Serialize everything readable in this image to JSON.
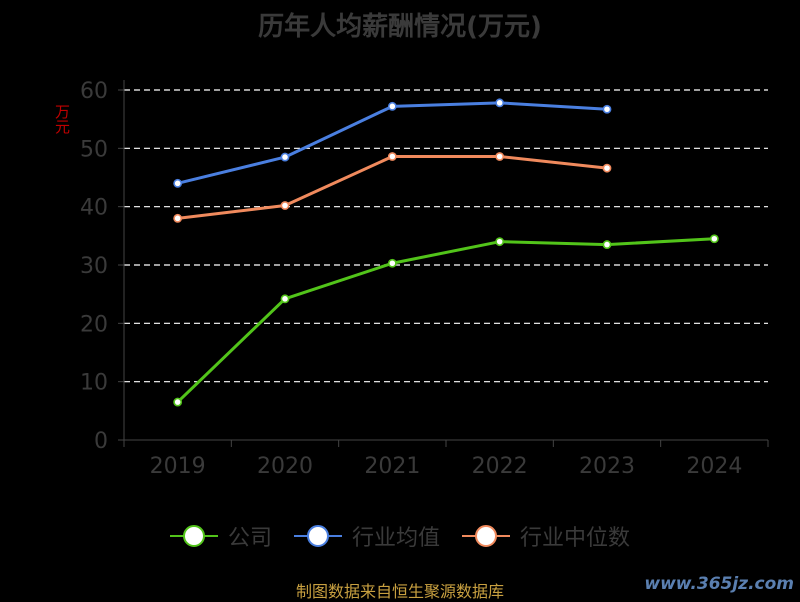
{
  "chart_data": {
    "type": "line",
    "title": "历年人均薪酬情况(万元)",
    "ylabel": "万元",
    "xlabel": "",
    "categories": [
      "2019",
      "2020",
      "2021",
      "2022",
      "2023",
      "2024"
    ],
    "ylim": [
      0,
      60
    ],
    "yticks": [
      0,
      10,
      20,
      30,
      40,
      50,
      60
    ],
    "grid": true,
    "legend_position": "bottom",
    "series": [
      {
        "name": "公司",
        "color": "#52c41a",
        "values": [
          6.5,
          24.2,
          30.3,
          34.0,
          33.5,
          34.5
        ]
      },
      {
        "name": "行业均值",
        "color": "#4a7fe0",
        "values": [
          44.0,
          48.5,
          57.2,
          57.8,
          56.7,
          null
        ]
      },
      {
        "name": "行业中位数",
        "color": "#f08a5d",
        "values": [
          38.0,
          40.2,
          48.6,
          48.6,
          46.6,
          null
        ]
      }
    ]
  },
  "footer": {
    "source": "制图数据来自恒生聚源数据库",
    "watermark": "www.365jz.com"
  }
}
